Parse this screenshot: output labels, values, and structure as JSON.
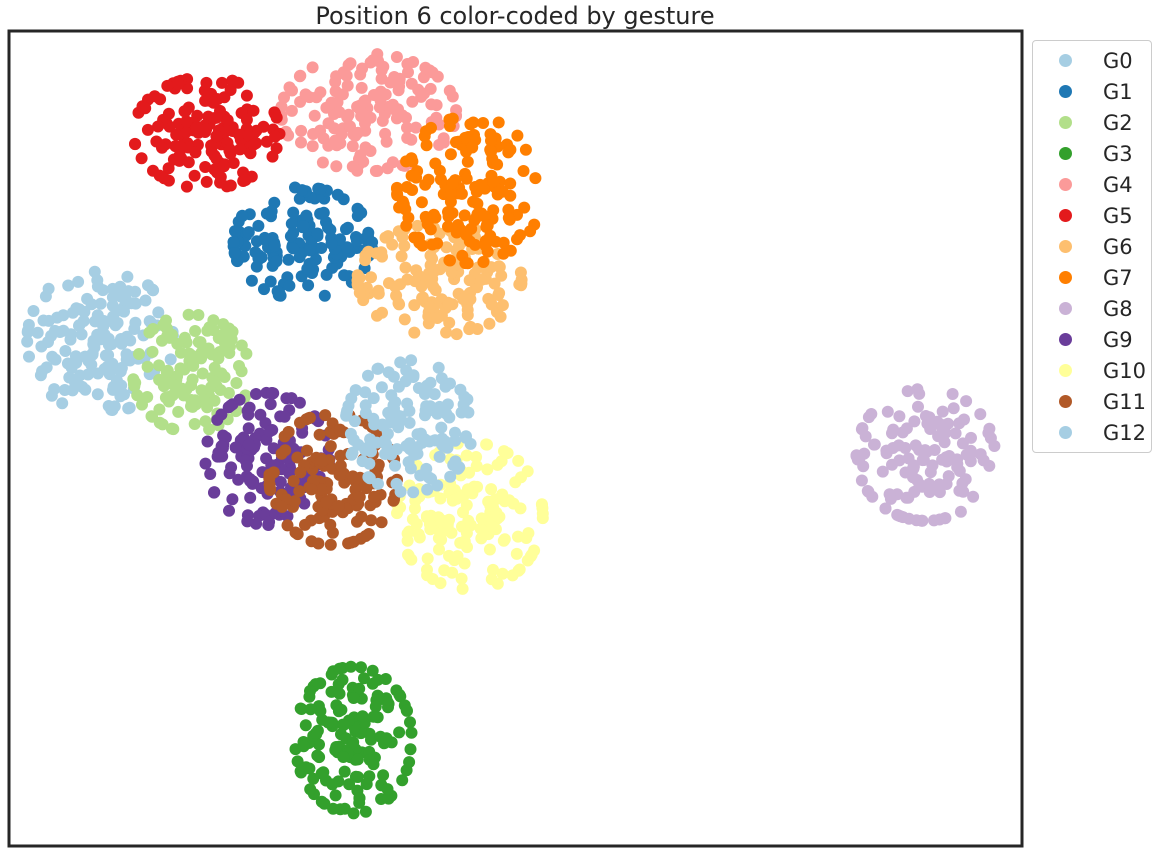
{
  "chart_data": {
    "type": "scatter",
    "title": "Position 6 color-coded by gesture",
    "xlabel": "",
    "ylabel": "",
    "xlim": [
      0,
      100
    ],
    "ylim": [
      0,
      100
    ],
    "grid": false,
    "axis_ticks": false,
    "legend_position": "outside-top-right",
    "series": [
      {
        "name": "G0",
        "color": "#a6cee3",
        "center": [
          9.0,
          62.0
        ],
        "spread": [
          4.0,
          5.0
        ],
        "count": 150
      },
      {
        "name": "G1",
        "color": "#1f78b4",
        "center": [
          29.0,
          74.0
        ],
        "spread": [
          3.8,
          3.8
        ],
        "count": 150
      },
      {
        "name": "G2",
        "color": "#b2df8a",
        "center": [
          18.0,
          58.0
        ],
        "spread": [
          3.2,
          4.0
        ],
        "count": 130
      },
      {
        "name": "G3",
        "color": "#33a02c",
        "center": [
          34.0,
          13.0
        ],
        "spread": [
          3.2,
          5.0
        ],
        "count": 150
      },
      {
        "name": "G4",
        "color": "#fb9a99",
        "center": [
          35.5,
          90.0
        ],
        "spread": [
          4.8,
          4.0
        ],
        "count": 150
      },
      {
        "name": "G5",
        "color": "#e31a1c",
        "center": [
          19.5,
          87.5
        ],
        "spread": [
          4.0,
          3.8
        ],
        "count": 150
      },
      {
        "name": "G6",
        "color": "#fdbf6f",
        "center": [
          42.5,
          69.5
        ],
        "spread": [
          4.5,
          3.8
        ],
        "count": 150
      },
      {
        "name": "G7",
        "color": "#ff7f00",
        "center": [
          45.5,
          80.5
        ],
        "spread": [
          4.0,
          5.0
        ],
        "count": 150
      },
      {
        "name": "G8",
        "color": "#cab2d6",
        "center": [
          90.5,
          48.0
        ],
        "spread": [
          3.8,
          4.5
        ],
        "count": 130
      },
      {
        "name": "G9",
        "color": "#6a3d9a",
        "center": [
          25.5,
          47.5
        ],
        "spread": [
          3.4,
          4.5
        ],
        "count": 150
      },
      {
        "name": "G10",
        "color": "#ffff99",
        "center": [
          45.5,
          40.5
        ],
        "spread": [
          4.0,
          5.0
        ],
        "count": 150
      },
      {
        "name": "G11",
        "color": "#b15928",
        "center": [
          32.0,
          45.0
        ],
        "spread": [
          3.5,
          4.5
        ],
        "count": 140
      },
      {
        "name": "G12",
        "color": "#a6cee3",
        "center": [
          39.5,
          51.5
        ],
        "spread": [
          3.5,
          4.5
        ],
        "count": 140
      }
    ]
  }
}
